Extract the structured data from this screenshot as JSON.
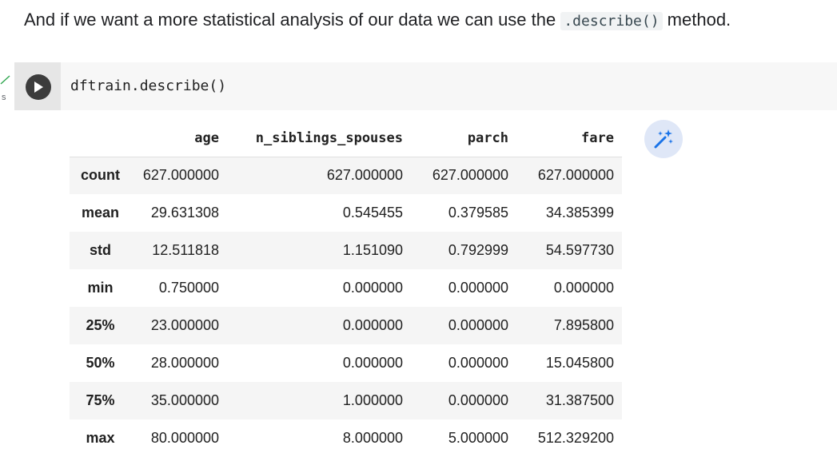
{
  "text_cell": {
    "before": "And if we want a more statistical analysis of our data we can use the ",
    "code": ".describe()",
    "after": " method."
  },
  "gutter": {
    "time_label": "s"
  },
  "code_cell": {
    "source": "dftrain.describe()"
  },
  "output_table": {
    "columns": [
      "",
      "age",
      "n_siblings_spouses",
      "parch",
      "fare"
    ],
    "rows": [
      {
        "index": "count",
        "age": "627.000000",
        "n_siblings_spouses": "627.000000",
        "parch": "627.000000",
        "fare": "627.000000"
      },
      {
        "index": "mean",
        "age": "29.631308",
        "n_siblings_spouses": "0.545455",
        "parch": "0.379585",
        "fare": "34.385399"
      },
      {
        "index": "std",
        "age": "12.511818",
        "n_siblings_spouses": "1.151090",
        "parch": "0.792999",
        "fare": "54.597730"
      },
      {
        "index": "min",
        "age": "0.750000",
        "n_siblings_spouses": "0.000000",
        "parch": "0.000000",
        "fare": "0.000000"
      },
      {
        "index": "25%",
        "age": "23.000000",
        "n_siblings_spouses": "0.000000",
        "parch": "0.000000",
        "fare": "7.895800"
      },
      {
        "index": "50%",
        "age": "28.000000",
        "n_siblings_spouses": "0.000000",
        "parch": "0.000000",
        "fare": "15.045800"
      },
      {
        "index": "75%",
        "age": "35.000000",
        "n_siblings_spouses": "1.000000",
        "parch": "0.000000",
        "fare": "31.387500"
      },
      {
        "index": "max",
        "age": "80.000000",
        "n_siblings_spouses": "8.000000",
        "parch": "5.000000",
        "fare": "512.329200"
      }
    ]
  },
  "icons": {
    "run": "play-icon",
    "magic": "magic-wand-icon",
    "status": "checkmark-icon"
  },
  "colors": {
    "run_button": "#3c3c3c",
    "magic_bg": "#dfe7f7",
    "magic_icon": "#1a73e8",
    "status_check": "#34a853"
  }
}
